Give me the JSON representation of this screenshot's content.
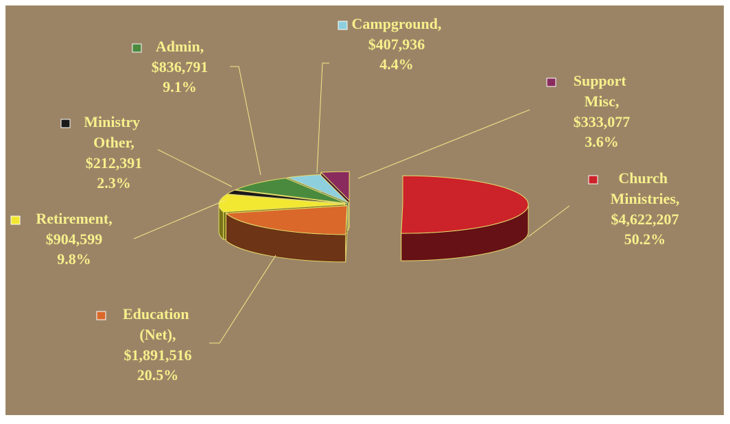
{
  "chart_data": {
    "type": "pie3d",
    "categories": [
      "Church Ministries,",
      "Education (Net),",
      "Retirement,",
      "Ministry Other,",
      "Admin,",
      "Campground,",
      "Support Misc,"
    ],
    "values": [
      4622207,
      1891516,
      904599,
      212391,
      836791,
      407936,
      333077
    ],
    "value_labels": [
      "$4,622,207",
      "$1,891,516",
      "$904,599",
      "$212,391",
      "$836,791",
      "$407,936",
      "$333,077"
    ],
    "percent_labels": [
      "50.2%",
      "20.5%",
      "9.8%",
      "2.3%",
      "9.1%",
      "4.4%",
      "3.6%"
    ],
    "colors": [
      "#cc2229",
      "#d9682a",
      "#f2e832",
      "#1a1a1a",
      "#4a8a3e",
      "#8ecfde",
      "#8a2b5e"
    ]
  }
}
